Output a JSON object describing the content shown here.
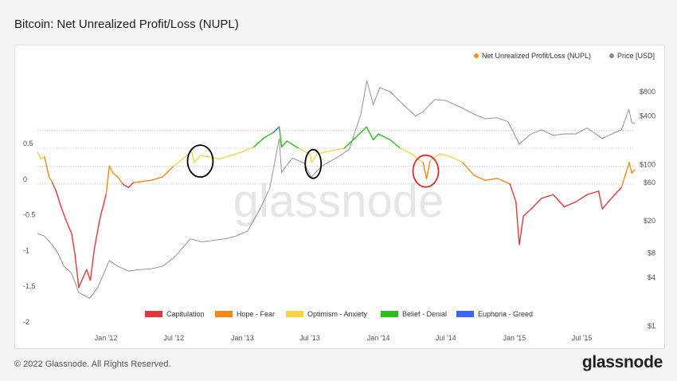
{
  "header": {
    "title": "Bitcoin: Net Unrealized Profit/Loss (NUPL)"
  },
  "footer": {
    "copyright": "© 2022 Glassnode. All Rights Reserved.",
    "brand": "glassnode"
  },
  "watermark": "glassnode",
  "colors": {
    "capitulation": "#e0383f",
    "hope_fear": "#f08a17",
    "optimism_anxiety": "#f5d547",
    "belief_denial": "#2bbf1d",
    "euphoria_greed": "#3a66f0",
    "price": "#8a8a8a",
    "nupl_legend": "#f7931a",
    "annotation_black": "#000000",
    "annotation_red": "#e0292f"
  },
  "chart_data": {
    "type": "line",
    "title": "Bitcoin: Net Unrealized Profit/Loss (NUPL)",
    "x_ticks": [
      "Jan '12",
      "Jul '12",
      "Jan '13",
      "Jul '13",
      "Jan '14",
      "Jul '14",
      "Jan '15",
      "Jul '15"
    ],
    "x_range": [
      "2011-07-01",
      "2015-11-20"
    ],
    "y_left_ticks": [
      "0.5",
      "0",
      "-0.5",
      "-1",
      "-1.5",
      "-2"
    ],
    "y_left_range": [
      -2,
      0.5
    ],
    "y_right_ticks": [
      "$800",
      "$400",
      "$100",
      "$60",
      "$20",
      "$8",
      "$4",
      "$1"
    ],
    "y_right_scale": "log",
    "grid": "dotted horizontal reference lines",
    "series_legend": [
      {
        "name": "Net Unrealized Profit/Loss (NUPL)"
      },
      {
        "name": "Price [USD]"
      }
    ],
    "zone_legend": [
      "Capitulation",
      "Hope - Fear",
      "Optimism - Anxiety",
      "Belief - Denial",
      "Euphoria - Greed"
    ],
    "nupl": [
      [
        "2011-07-01",
        0.45
      ],
      [
        "2011-07-10",
        0.35
      ],
      [
        "2011-07-20",
        0.38
      ],
      [
        "2011-08-01",
        0.1
      ],
      [
        "2011-08-10",
        0.02
      ],
      [
        "2011-08-20",
        -0.1
      ],
      [
        "2011-09-01",
        -0.3
      ],
      [
        "2011-09-15",
        -0.5
      ],
      [
        "2011-10-01",
        -0.7
      ],
      [
        "2011-10-10",
        -1.0
      ],
      [
        "2011-10-20",
        -1.45
      ],
      [
        "2011-10-28",
        -1.35
      ],
      [
        "2011-11-10",
        -1.2
      ],
      [
        "2011-11-20",
        -1.35
      ],
      [
        "2011-12-01",
        -0.9
      ],
      [
        "2011-12-15",
        -0.5
      ],
      [
        "2012-01-01",
        -0.15
      ],
      [
        "2012-01-10",
        0.25
      ],
      [
        "2012-01-20",
        0.15
      ],
      [
        "2012-02-01",
        0.1
      ],
      [
        "2012-02-15",
        0.0
      ],
      [
        "2012-03-01",
        -0.05
      ],
      [
        "2012-03-15",
        0.02
      ],
      [
        "2012-04-01",
        0.03
      ],
      [
        "2012-05-01",
        0.05
      ],
      [
        "2012-06-01",
        0.1
      ],
      [
        "2012-07-01",
        0.25
      ],
      [
        "2012-08-01",
        0.38
      ],
      [
        "2012-08-18",
        0.45
      ],
      [
        "2012-08-25",
        0.3
      ],
      [
        "2012-09-10",
        0.4
      ],
      [
        "2012-10-01",
        0.38
      ],
      [
        "2012-11-01",
        0.35
      ],
      [
        "2012-12-01",
        0.4
      ],
      [
        "2013-01-01",
        0.45
      ],
      [
        "2013-02-01",
        0.52
      ],
      [
        "2013-03-01",
        0.65
      ],
      [
        "2013-03-25",
        0.72
      ],
      [
        "2013-04-10",
        0.8
      ],
      [
        "2013-04-16",
        0.52
      ],
      [
        "2013-05-01",
        0.6
      ],
      [
        "2013-06-01",
        0.5
      ],
      [
        "2013-07-01",
        0.42
      ],
      [
        "2013-07-06",
        0.3
      ],
      [
        "2013-07-20",
        0.42
      ],
      [
        "2013-08-15",
        0.45
      ],
      [
        "2013-10-01",
        0.5
      ],
      [
        "2013-11-01",
        0.65
      ],
      [
        "2013-11-30",
        0.8
      ],
      [
        "2013-12-18",
        0.62
      ],
      [
        "2014-01-01",
        0.7
      ],
      [
        "2014-02-01",
        0.62
      ],
      [
        "2014-03-01",
        0.5
      ],
      [
        "2014-04-01",
        0.42
      ],
      [
        "2014-04-15",
        0.35
      ],
      [
        "2014-05-01",
        0.3
      ],
      [
        "2014-05-10",
        0.07
      ],
      [
        "2014-05-20",
        0.33
      ],
      [
        "2014-06-15",
        0.42
      ],
      [
        "2014-07-15",
        0.38
      ],
      [
        "2014-08-15",
        0.3
      ],
      [
        "2014-09-15",
        0.12
      ],
      [
        "2014-10-15",
        0.05
      ],
      [
        "2014-11-15",
        0.08
      ],
      [
        "2014-12-20",
        0.0
      ],
      [
        "2015-01-05",
        -0.25
      ],
      [
        "2015-01-14",
        -0.85
      ],
      [
        "2015-01-25",
        -0.45
      ],
      [
        "2015-02-15",
        -0.35
      ],
      [
        "2015-03-15",
        -0.2
      ],
      [
        "2015-04-15",
        -0.15
      ],
      [
        "2015-05-15",
        -0.32
      ],
      [
        "2015-06-15",
        -0.25
      ],
      [
        "2015-07-15",
        -0.15
      ],
      [
        "2015-08-15",
        -0.1
      ],
      [
        "2015-08-25",
        -0.35
      ],
      [
        "2015-09-15",
        -0.22
      ],
      [
        "2015-10-15",
        -0.05
      ],
      [
        "2015-11-05",
        0.3
      ],
      [
        "2015-11-12",
        0.15
      ],
      [
        "2015-11-20",
        0.2
      ]
    ],
    "price": [
      [
        "2011-07-01",
        14
      ],
      [
        "2011-07-20",
        13
      ],
      [
        "2011-08-10",
        10
      ],
      [
        "2011-08-25",
        8
      ],
      [
        "2011-09-10",
        5.5
      ],
      [
        "2011-10-01",
        4.5
      ],
      [
        "2011-10-20",
        2.6
      ],
      [
        "2011-11-18",
        2.2
      ],
      [
        "2011-12-10",
        3
      ],
      [
        "2012-01-10",
        6.5
      ],
      [
        "2012-02-01",
        5.5
      ],
      [
        "2012-03-01",
        4.8
      ],
      [
        "2012-04-01",
        5
      ],
      [
        "2012-05-01",
        5.1
      ],
      [
        "2012-06-01",
        5.5
      ],
      [
        "2012-07-01",
        7
      ],
      [
        "2012-08-15",
        12
      ],
      [
        "2012-09-15",
        11
      ],
      [
        "2012-10-15",
        11.5
      ],
      [
        "2012-11-15",
        12
      ],
      [
        "2012-12-15",
        13
      ],
      [
        "2013-01-15",
        15
      ],
      [
        "2013-02-15",
        27
      ],
      [
        "2013-03-15",
        50
      ],
      [
        "2013-04-10",
        210
      ],
      [
        "2013-04-16",
        80
      ],
      [
        "2013-05-15",
        120
      ],
      [
        "2013-06-15",
        105
      ],
      [
        "2013-07-05",
        70
      ],
      [
        "2013-08-01",
        95
      ],
      [
        "2013-09-15",
        125
      ],
      [
        "2013-10-15",
        155
      ],
      [
        "2013-11-15",
        420
      ],
      [
        "2013-12-01",
        1100
      ],
      [
        "2013-12-18",
        550
      ],
      [
        "2014-01-05",
        900
      ],
      [
        "2014-02-01",
        800
      ],
      [
        "2014-03-01",
        600
      ],
      [
        "2014-04-10",
        400
      ],
      [
        "2014-05-01",
        450
      ],
      [
        "2014-06-01",
        640
      ],
      [
        "2014-07-01",
        620
      ],
      [
        "2014-08-15",
        500
      ],
      [
        "2014-09-15",
        420
      ],
      [
        "2014-10-15",
        370
      ],
      [
        "2014-11-15",
        380
      ],
      [
        "2014-12-15",
        340
      ],
      [
        "2015-01-14",
        180
      ],
      [
        "2015-02-15",
        240
      ],
      [
        "2015-03-15",
        270
      ],
      [
        "2015-04-15",
        230
      ],
      [
        "2015-05-15",
        240
      ],
      [
        "2015-06-15",
        240
      ],
      [
        "2015-07-15",
        285
      ],
      [
        "2015-08-25",
        210
      ],
      [
        "2015-09-15",
        235
      ],
      [
        "2015-10-15",
        270
      ],
      [
        "2015-11-04",
        480
      ],
      [
        "2015-11-12",
        330
      ],
      [
        "2015-11-20",
        325
      ]
    ],
    "annotations": [
      {
        "shape": "ellipse",
        "color": "black",
        "center": [
          "2012-09-10",
          0.32
        ]
      },
      {
        "shape": "ellipse",
        "color": "black",
        "center": [
          "2013-07-10",
          0.28
        ]
      },
      {
        "shape": "ellipse",
        "color": "red",
        "center": [
          "2014-05-08",
          0.18
        ]
      }
    ]
  }
}
